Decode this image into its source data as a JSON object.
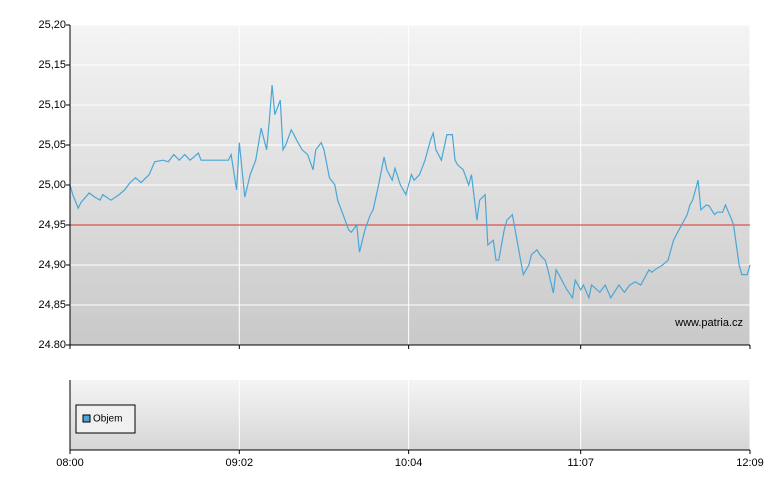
{
  "chart_data": {
    "type": "line",
    "color": "#4ba6d6",
    "x": [
      "08:00",
      "08:01",
      "08:03",
      "08:04",
      "08:07",
      "08:09",
      "08:11",
      "08:12",
      "08:15",
      "08:18",
      "08:20",
      "08:22",
      "08:24",
      "08:26",
      "08:29",
      "08:31",
      "08:34",
      "08:36",
      "08:38",
      "08:40",
      "08:42",
      "08:44",
      "08:47",
      "08:48",
      "08:51",
      "08:55",
      "08:58",
      "08:59",
      "09:01",
      "09:02",
      "09:04",
      "09:06",
      "09:08",
      "09:10",
      "09:12",
      "09:13",
      "09:14",
      "09:15",
      "09:17",
      "09:18",
      "09:19",
      "09:21",
      "09:22",
      "09:23",
      "09:25",
      "09:27",
      "09:29",
      "09:30",
      "09:32",
      "09:33",
      "09:35",
      "09:37",
      "09:38",
      "09:40",
      "09:42",
      "09:43",
      "09:45",
      "09:46",
      "09:48",
      "09:50",
      "09:51",
      "09:53",
      "09:55",
      "09:56",
      "09:58",
      "09:59",
      "10:01",
      "10:03",
      "10:05",
      "10:06",
      "10:08",
      "10:10",
      "10:12",
      "10:13",
      "10:14",
      "10:16",
      "10:18",
      "10:20",
      "10:21",
      "10:22",
      "10:24",
      "10:26",
      "10:27",
      "10:29",
      "10:30",
      "10:32",
      "10:33",
      "10:35",
      "10:36",
      "10:37",
      "10:39",
      "10:40",
      "10:42",
      "10:43",
      "10:45",
      "10:46",
      "10:48",
      "10:49",
      "10:51",
      "10:52",
      "10:54",
      "10:55",
      "10:57",
      "10:58",
      "10:59",
      "11:01",
      "11:02",
      "11:04",
      "11:05",
      "11:07",
      "11:08",
      "11:10",
      "11:11",
      "11:13",
      "11:14",
      "11:16",
      "11:18",
      "11:21",
      "11:23",
      "11:25",
      "11:27",
      "11:29",
      "11:32",
      "11:33",
      "11:35",
      "11:37",
      "11:39",
      "11:41",
      "11:43",
      "11:46",
      "11:47",
      "11:48",
      "11:50",
      "11:51",
      "11:53",
      "11:54",
      "11:56",
      "11:57",
      "11:59",
      "12:00",
      "12:02",
      "12:03",
      "12:05",
      "12:06",
      "12:08",
      "12:09"
    ],
    "values": [
      25.0,
      24.988,
      24.971,
      24.978,
      24.99,
      24.985,
      24.981,
      24.988,
      24.981,
      24.988,
      24.994,
      25.003,
      25.009,
      25.003,
      25.013,
      25.029,
      25.031,
      25.029,
      25.038,
      25.031,
      25.038,
      25.031,
      25.04,
      25.031,
      25.031,
      25.031,
      25.031,
      25.038,
      24.994,
      25.053,
      24.985,
      25.013,
      25.031,
      25.071,
      25.044,
      25.081,
      25.125,
      25.088,
      25.106,
      25.044,
      25.05,
      25.069,
      25.063,
      25.056,
      25.044,
      25.038,
      25.019,
      25.044,
      25.053,
      25.044,
      25.009,
      25.0,
      24.981,
      24.963,
      24.944,
      24.941,
      24.95,
      24.916,
      24.944,
      24.963,
      24.969,
      25.0,
      25.035,
      25.019,
      25.006,
      25.021,
      25.0,
      24.988,
      25.013,
      25.006,
      25.013,
      25.031,
      25.056,
      25.065,
      25.044,
      25.031,
      25.063,
      25.063,
      25.031,
      25.025,
      25.019,
      25.0,
      25.013,
      24.956,
      24.981,
      24.988,
      24.925,
      24.931,
      24.906,
      24.906,
      24.944,
      24.956,
      24.963,
      24.944,
      24.906,
      24.888,
      24.9,
      24.913,
      24.919,
      24.913,
      24.906,
      24.894,
      24.865,
      24.894,
      24.888,
      24.875,
      24.869,
      24.859,
      24.881,
      24.869,
      24.875,
      24.859,
      24.875,
      24.869,
      24.866,
      24.875,
      24.859,
      24.875,
      24.866,
      24.875,
      24.879,
      24.875,
      24.894,
      24.891,
      24.896,
      24.9,
      24.906,
      24.931,
      24.944,
      24.963,
      24.975,
      24.981,
      25.006,
      24.969,
      24.975,
      24.974,
      24.963,
      24.966,
      24.966,
      24.975,
      24.959,
      24.95,
      24.9,
      24.888,
      24.888,
      24.9
    ],
    "xlim": [
      "08:00",
      "12:09"
    ],
    "xticks": [
      "08:00",
      "09:02",
      "10:04",
      "11:07",
      "12:09"
    ],
    "ylim": [
      24.8,
      25.2
    ],
    "yticks": [
      {
        "value": 24.8,
        "label": "24.80"
      },
      {
        "value": 24.85,
        "label": "24,85"
      },
      {
        "value": 24.9,
        "label": "24,90"
      },
      {
        "value": 24.95,
        "label": "24,95"
      },
      {
        "value": 25.0,
        "label": "25,00"
      },
      {
        "value": 25.05,
        "label": "25,05"
      },
      {
        "value": 25.1,
        "label": "25,10"
      },
      {
        "value": 25.15,
        "label": "25,15"
      },
      {
        "value": 25.2,
        "label": "25,20"
      }
    ],
    "reference": {
      "value": 24.95,
      "color": "#e03030"
    },
    "grid": true,
    "watermark": "www.patria.cz",
    "volume_legend": {
      "name": "Objem",
      "color": "#4ba6d6"
    }
  }
}
